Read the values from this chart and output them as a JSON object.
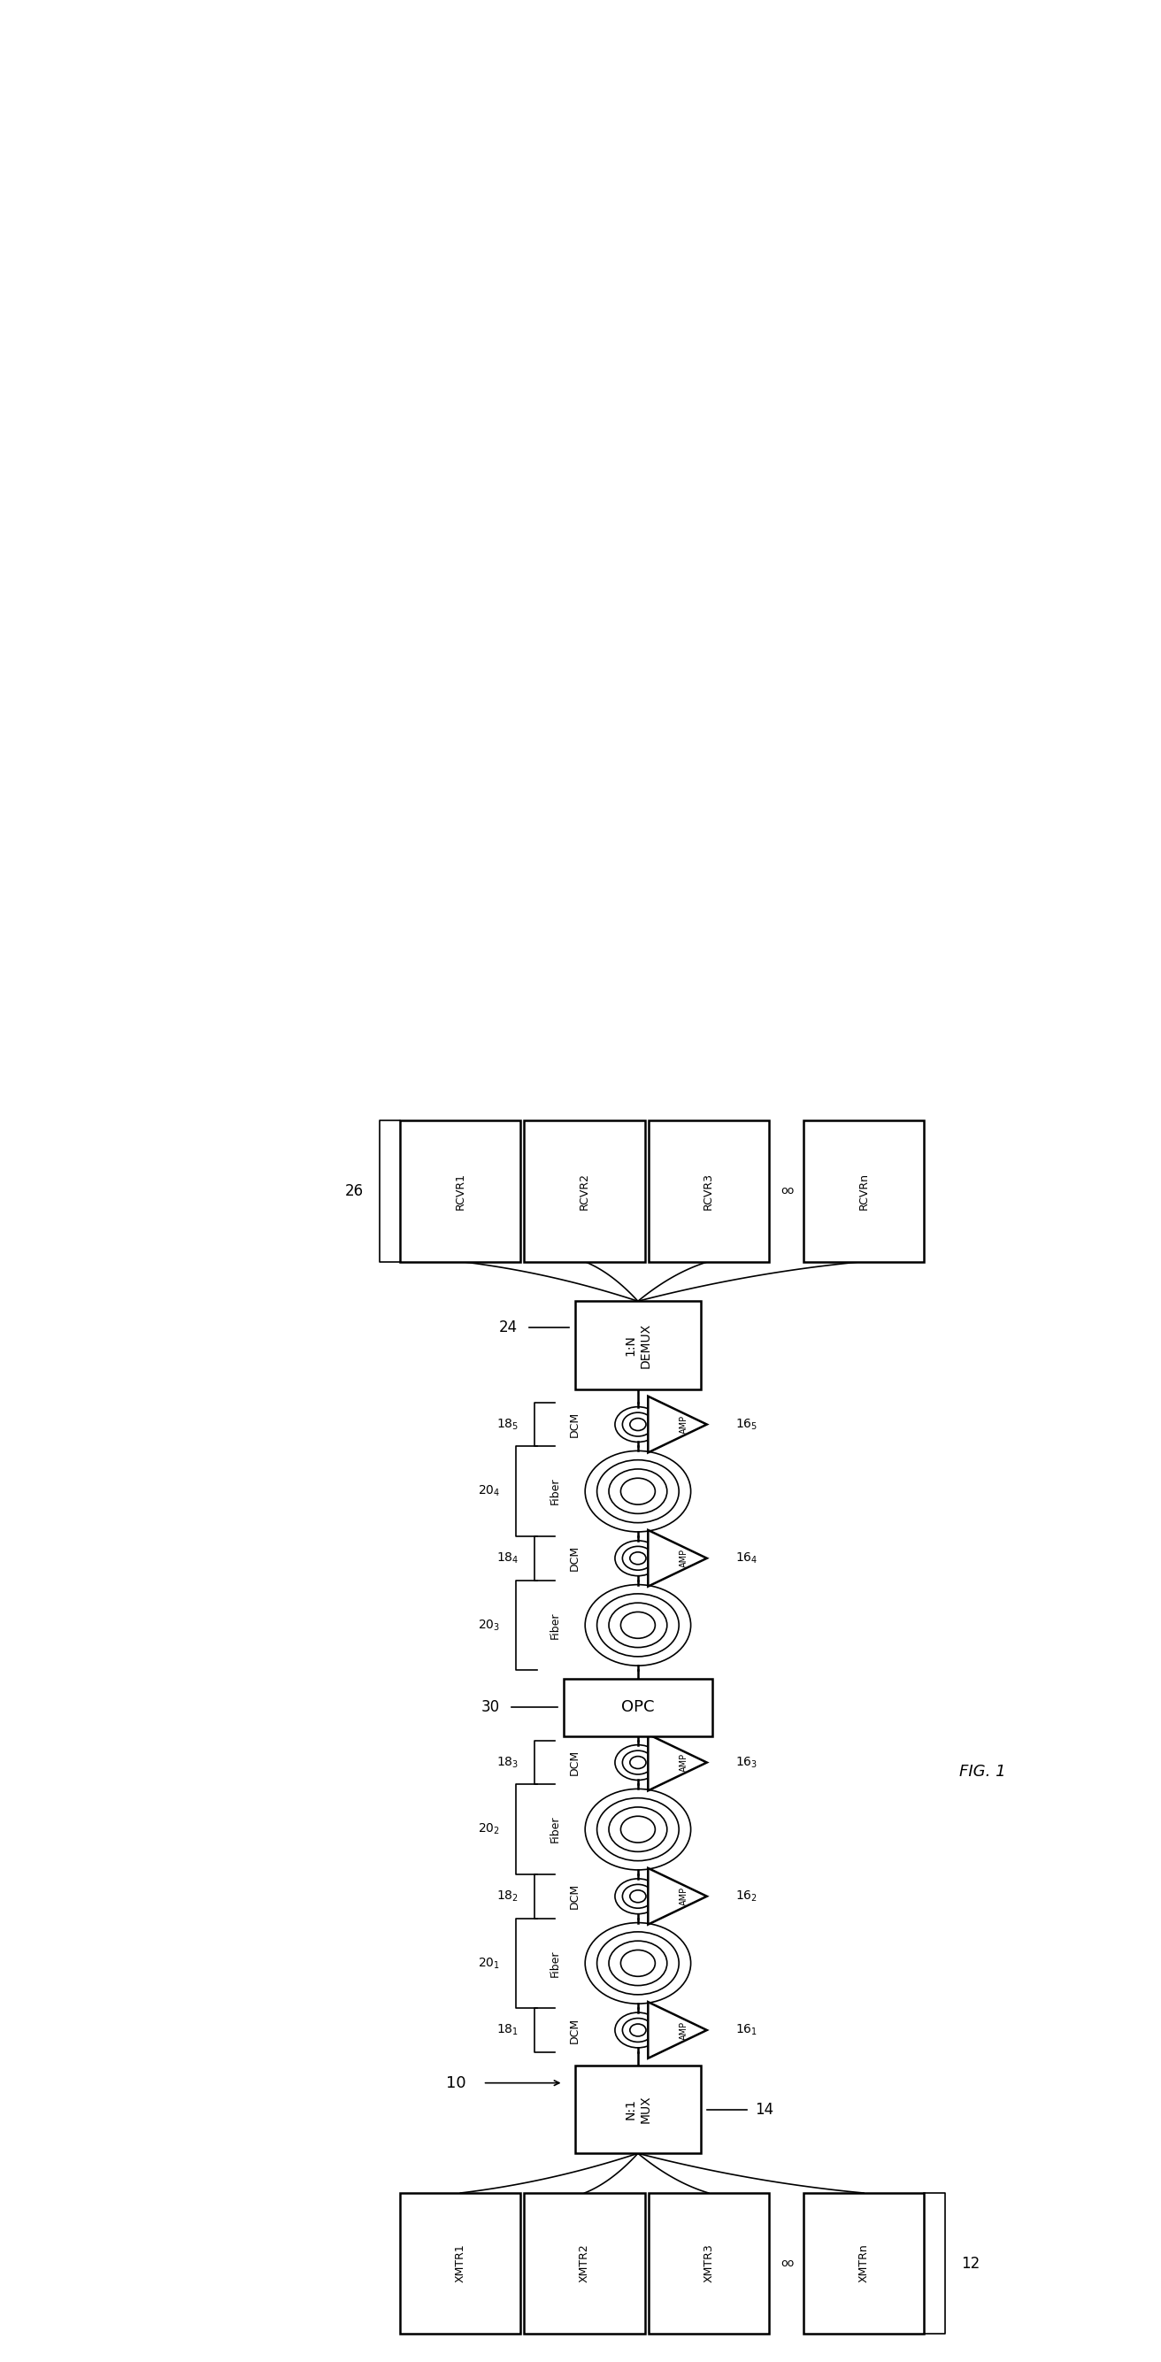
{
  "fig_width": 13.12,
  "fig_height": 26.69,
  "bg_color": "#ffffff",
  "title": "FIG. 1",
  "label_10": "10",
  "label_12": "12",
  "label_14": "14",
  "label_24": "24",
  "label_26": "26",
  "label_30": "30",
  "xmtr_labels": [
    "XMTR1",
    "XMTR2",
    "XMTR3"
  ],
  "rcvr_labels": [
    "RCVR1",
    "RCVR2",
    "RCVR3"
  ],
  "xmtrn_label": "XMTRn",
  "rcvrn_label": "RCVRn",
  "mux_label": "N:1\nMUX",
  "demux_label": "1:N\nDEMUX",
  "opc_label": "OPC",
  "main_x": 5.5,
  "xlim": [
    0,
    10
  ],
  "ylim": [
    0,
    26.69
  ]
}
